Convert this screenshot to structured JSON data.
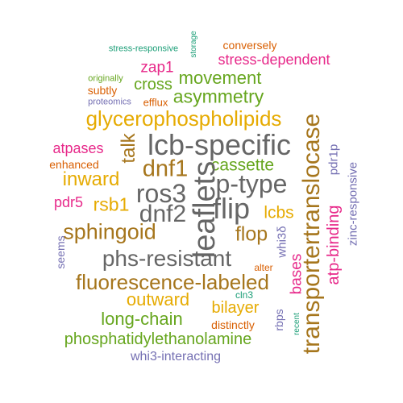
{
  "palette": {
    "teal": "#1b9e77",
    "orange": "#d95f02",
    "purple": "#7570b3",
    "magenta": "#e7298a",
    "green": "#66a61e",
    "mustard": "#e6ab02",
    "brown": "#a6761d",
    "gray": "#666666"
  },
  "words": [
    {
      "text": "stress-responsive",
      "color": "teal"
    },
    {
      "text": "storage",
      "color": "teal"
    },
    {
      "text": "conversely",
      "color": "orange"
    },
    {
      "text": "stress-dependent",
      "color": "magenta"
    },
    {
      "text": "zap1",
      "color": "magenta"
    },
    {
      "text": "movement",
      "color": "green"
    },
    {
      "text": "originally",
      "color": "green"
    },
    {
      "text": "subtly",
      "color": "orange"
    },
    {
      "text": "cross",
      "color": "green"
    },
    {
      "text": "asymmetry",
      "color": "green"
    },
    {
      "text": "proteomics",
      "color": "purple"
    },
    {
      "text": "efflux",
      "color": "orange"
    },
    {
      "text": "glycerophospholipids",
      "color": "mustard"
    },
    {
      "text": "talk",
      "color": "brown"
    },
    {
      "text": "lcb-specific",
      "color": "gray"
    },
    {
      "text": "transportertranslocase",
      "color": "brown"
    },
    {
      "text": "atpases",
      "color": "magenta"
    },
    {
      "text": "enhanced",
      "color": "orange"
    },
    {
      "text": "dnf1",
      "color": "brown"
    },
    {
      "text": "cassette",
      "color": "green"
    },
    {
      "text": "pdr1p",
      "color": "purple"
    },
    {
      "text": "zinc-responsive",
      "color": "purple"
    },
    {
      "text": "inward",
      "color": "mustard"
    },
    {
      "text": "p-type",
      "color": "gray"
    },
    {
      "text": "ros3",
      "color": "gray"
    },
    {
      "text": "leaflets",
      "color": "gray"
    },
    {
      "text": "pdr5",
      "color": "magenta"
    },
    {
      "text": "rsb1",
      "color": "mustard"
    },
    {
      "text": "dnf2",
      "color": "gray"
    },
    {
      "text": "flip",
      "color": "gray"
    },
    {
      "text": "lcbs",
      "color": "mustard"
    },
    {
      "text": "atp-binding",
      "color": "magenta"
    },
    {
      "text": "sphingoid",
      "color": "brown"
    },
    {
      "text": "flop",
      "color": "brown"
    },
    {
      "text": "whi3δ",
      "color": "purple"
    },
    {
      "text": "seems",
      "color": "purple"
    },
    {
      "text": "phs-resistant",
      "color": "gray"
    },
    {
      "text": "alter",
      "color": "orange"
    },
    {
      "text": "fluorescence-labeled",
      "color": "brown"
    },
    {
      "text": "bases",
      "color": "magenta"
    },
    {
      "text": "cln3",
      "color": "teal"
    },
    {
      "text": "outward",
      "color": "mustard"
    },
    {
      "text": "bilayer",
      "color": "mustard"
    },
    {
      "text": "long-chain",
      "color": "green"
    },
    {
      "text": "rbps",
      "color": "purple"
    },
    {
      "text": "recent",
      "color": "teal"
    },
    {
      "text": "distinctly",
      "color": "orange"
    },
    {
      "text": "phosphatidylethanolamine",
      "color": "green"
    },
    {
      "text": "whi3-interacting",
      "color": "purple"
    }
  ]
}
